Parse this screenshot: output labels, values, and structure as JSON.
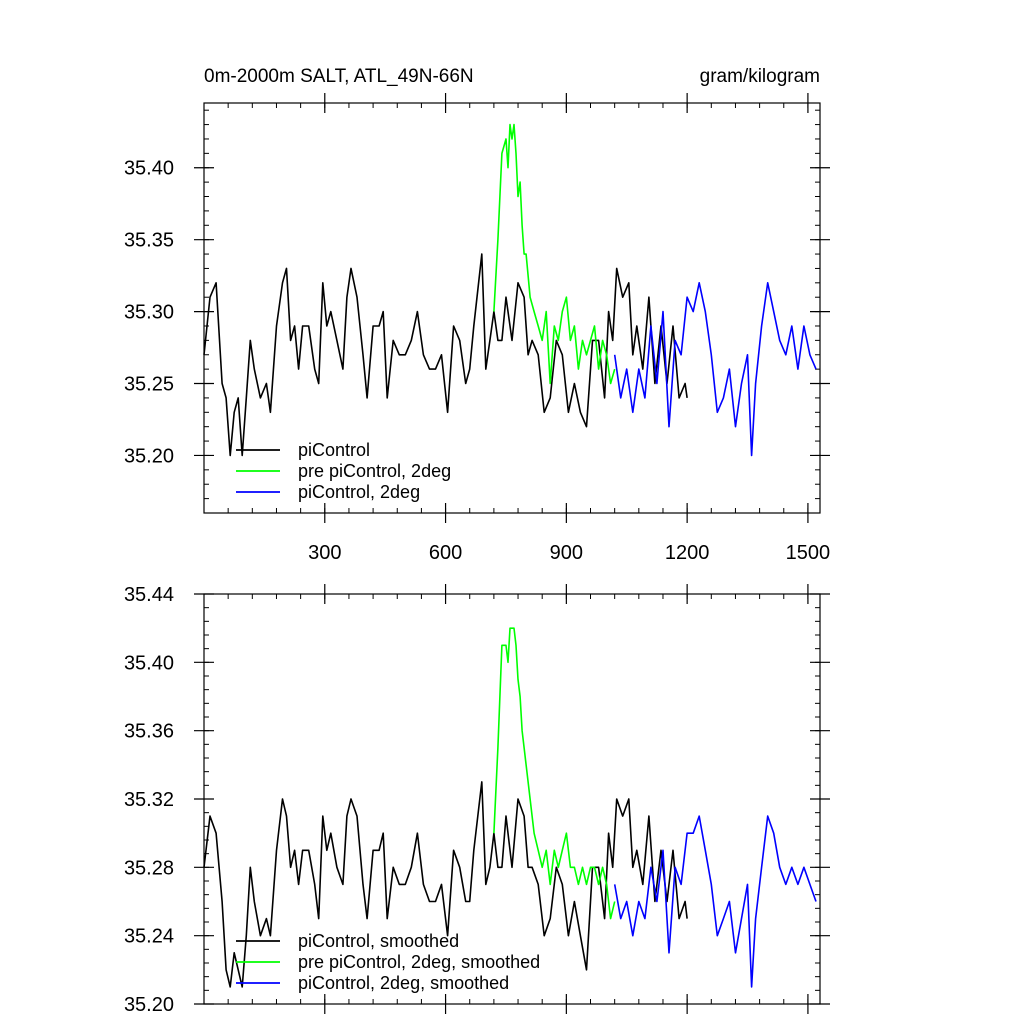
{
  "chart_data": [
    {
      "type": "line",
      "title_left": "0m-2000m SALT, ATL_49N-66N",
      "title_right": "gram/kilogram",
      "xlim": [
        0,
        1530
      ],
      "ylim": [
        35.16,
        35.445
      ],
      "x_ticks": [
        300,
        600,
        900,
        1200,
        1500
      ],
      "x_tick_labels": [
        "300",
        "600",
        "900",
        "1200",
        "1500"
      ],
      "y_ticks": [
        35.2,
        35.25,
        35.3,
        35.35,
        35.4
      ],
      "y_tick_labels": [
        "35.20",
        "35.25",
        "35.30",
        "35.35",
        "35.40"
      ],
      "legend": [
        "piControl",
        "pre piControl, 2deg",
        "piControl, 2deg"
      ],
      "series": [
        {
          "name": "piControl",
          "color": "#000000",
          "x": [
            0,
            15,
            30,
            45,
            55,
            65,
            75,
            85,
            95,
            105,
            115,
            125,
            140,
            155,
            165,
            180,
            195,
            205,
            215,
            225,
            235,
            245,
            260,
            275,
            285,
            295,
            305,
            315,
            330,
            345,
            355,
            365,
            380,
            395,
            405,
            420,
            435,
            445,
            455,
            470,
            485,
            500,
            515,
            530,
            545,
            560,
            575,
            590,
            605,
            620,
            635,
            650,
            660,
            670,
            690,
            700,
            710,
            720,
            730,
            740,
            750,
            765,
            780,
            795,
            805,
            815,
            830,
            845,
            860,
            875,
            890,
            905,
            920,
            935,
            950,
            965,
            980,
            995,
            1005,
            1015,
            1025,
            1040,
            1055,
            1065,
            1075,
            1090,
            1105,
            1120,
            1135,
            1150,
            1165,
            1180,
            1195,
            1200
          ],
          "y": [
            35.27,
            35.31,
            35.32,
            35.25,
            35.24,
            35.2,
            35.23,
            35.24,
            35.2,
            35.24,
            35.28,
            35.26,
            35.24,
            35.25,
            35.23,
            35.29,
            35.32,
            35.33,
            35.28,
            35.29,
            35.26,
            35.29,
            35.29,
            35.26,
            35.25,
            35.32,
            35.29,
            35.3,
            35.28,
            35.26,
            35.31,
            35.33,
            35.31,
            35.27,
            35.24,
            35.29,
            35.29,
            35.3,
            35.24,
            35.28,
            35.27,
            35.27,
            35.28,
            35.3,
            35.27,
            35.26,
            35.26,
            35.27,
            35.23,
            35.29,
            35.28,
            35.25,
            35.26,
            35.29,
            35.34,
            35.26,
            35.28,
            35.3,
            35.28,
            35.28,
            35.31,
            35.28,
            35.32,
            35.31,
            35.27,
            35.28,
            35.27,
            35.23,
            35.24,
            35.28,
            35.27,
            35.23,
            35.25,
            35.23,
            35.22,
            35.28,
            35.28,
            35.24,
            35.3,
            35.28,
            35.33,
            35.31,
            35.32,
            35.27,
            35.29,
            35.26,
            35.31,
            35.25,
            35.29,
            35.25,
            35.29,
            35.24,
            35.25,
            35.24
          ]
        },
        {
          "name": "pre piControl, 2deg",
          "color": "#00ff00",
          "x": [
            720,
            730,
            740,
            750,
            755,
            760,
            765,
            770,
            775,
            780,
            785,
            790,
            795,
            800,
            810,
            820,
            830,
            840,
            850,
            860,
            870,
            880,
            890,
            900,
            910,
            920,
            930,
            940,
            950,
            960,
            970,
            980,
            990,
            1000,
            1010,
            1020
          ],
          "y": [
            35.3,
            35.35,
            35.41,
            35.42,
            35.4,
            35.43,
            35.42,
            35.43,
            35.41,
            35.38,
            35.39,
            35.36,
            35.34,
            35.34,
            35.31,
            35.3,
            35.29,
            35.28,
            35.3,
            35.25,
            35.29,
            35.28,
            35.3,
            35.31,
            35.28,
            35.29,
            35.26,
            35.28,
            35.27,
            35.28,
            35.29,
            35.26,
            35.28,
            35.27,
            35.25,
            35.26
          ]
        },
        {
          "name": "piControl, 2deg",
          "color": "#0000ff",
          "x": [
            1020,
            1035,
            1050,
            1065,
            1080,
            1095,
            1110,
            1125,
            1140,
            1155,
            1170,
            1185,
            1200,
            1215,
            1230,
            1245,
            1260,
            1275,
            1290,
            1305,
            1320,
            1335,
            1350,
            1360,
            1370,
            1385,
            1400,
            1415,
            1430,
            1445,
            1460,
            1475,
            1490,
            1505,
            1520
          ],
          "y": [
            35.27,
            35.24,
            35.26,
            35.23,
            35.26,
            35.24,
            35.29,
            35.25,
            35.3,
            35.22,
            35.28,
            35.27,
            35.31,
            35.3,
            35.32,
            35.3,
            35.27,
            35.23,
            35.24,
            35.26,
            35.22,
            35.25,
            35.27,
            35.2,
            35.25,
            35.29,
            35.32,
            35.3,
            35.28,
            35.27,
            35.29,
            35.26,
            35.29,
            35.27,
            35.26
          ]
        }
      ]
    },
    {
      "type": "line",
      "xlim": [
        0,
        1530
      ],
      "ylim": [
        35.2,
        35.44
      ],
      "y_ticks": [
        35.2,
        35.24,
        35.28,
        35.32,
        35.36,
        35.4,
        35.44
      ],
      "y_tick_labels": [
        "35.20",
        "35.24",
        "35.28",
        "35.32",
        "35.36",
        "35.40",
        "35.44"
      ],
      "legend": [
        "piControl, smoothed",
        "pre piControl, 2deg, smoothed",
        "piControl, 2deg, smoothed"
      ],
      "series": [
        {
          "name": "piControl, smoothed",
          "color": "#000000",
          "x": [
            0,
            15,
            30,
            45,
            55,
            65,
            75,
            85,
            95,
            105,
            115,
            125,
            140,
            155,
            165,
            180,
            195,
            205,
            215,
            225,
            235,
            245,
            260,
            275,
            285,
            295,
            305,
            315,
            330,
            345,
            355,
            365,
            380,
            395,
            405,
            420,
            435,
            445,
            455,
            470,
            485,
            500,
            515,
            530,
            545,
            560,
            575,
            590,
            605,
            620,
            635,
            650,
            660,
            670,
            690,
            700,
            710,
            720,
            730,
            740,
            750,
            765,
            780,
            795,
            805,
            815,
            830,
            845,
            860,
            875,
            890,
            905,
            920,
            935,
            950,
            965,
            980,
            995,
            1005,
            1015,
            1025,
            1040,
            1055,
            1065,
            1075,
            1090,
            1105,
            1120,
            1135,
            1150,
            1165,
            1180,
            1195,
            1200
          ],
          "y": [
            35.28,
            35.31,
            35.3,
            35.26,
            35.22,
            35.21,
            35.23,
            35.22,
            35.21,
            35.24,
            35.28,
            35.26,
            35.24,
            35.25,
            35.24,
            35.29,
            35.32,
            35.31,
            35.28,
            35.29,
            35.27,
            35.29,
            35.29,
            35.27,
            35.25,
            35.31,
            35.29,
            35.3,
            35.28,
            35.27,
            35.31,
            35.32,
            35.31,
            35.27,
            35.25,
            35.29,
            35.29,
            35.3,
            35.25,
            35.28,
            35.27,
            35.27,
            35.28,
            35.3,
            35.27,
            35.26,
            35.26,
            35.27,
            35.24,
            35.29,
            35.28,
            35.26,
            35.26,
            35.29,
            35.33,
            35.27,
            35.28,
            35.3,
            35.28,
            35.28,
            35.31,
            35.28,
            35.32,
            35.31,
            35.28,
            35.28,
            35.27,
            35.24,
            35.25,
            35.28,
            35.27,
            35.24,
            35.26,
            35.24,
            35.22,
            35.28,
            35.28,
            35.25,
            35.3,
            35.28,
            35.32,
            35.31,
            35.32,
            35.28,
            35.29,
            35.27,
            35.31,
            35.26,
            35.29,
            35.26,
            35.29,
            35.25,
            35.26,
            35.25
          ]
        },
        {
          "name": "pre piControl, 2deg, smoothed",
          "color": "#00ff00",
          "x": [
            720,
            730,
            740,
            750,
            755,
            760,
            765,
            770,
            775,
            780,
            785,
            790,
            795,
            800,
            810,
            820,
            830,
            840,
            850,
            860,
            870,
            880,
            890,
            900,
            910,
            920,
            930,
            940,
            950,
            960,
            970,
            980,
            990,
            1000,
            1010,
            1020
          ],
          "y": [
            35.3,
            35.35,
            35.41,
            35.41,
            35.4,
            35.42,
            35.42,
            35.42,
            35.41,
            35.39,
            35.38,
            35.36,
            35.35,
            35.34,
            35.32,
            35.3,
            35.29,
            35.28,
            35.29,
            35.27,
            35.29,
            35.28,
            35.29,
            35.3,
            35.28,
            35.28,
            35.27,
            35.28,
            35.27,
            35.28,
            35.28,
            35.27,
            35.28,
            35.27,
            35.25,
            35.26
          ]
        },
        {
          "name": "piControl, 2deg, smoothed",
          "color": "#0000ff",
          "x": [
            1020,
            1035,
            1050,
            1065,
            1080,
            1095,
            1110,
            1125,
            1140,
            1155,
            1170,
            1185,
            1200,
            1215,
            1230,
            1245,
            1260,
            1275,
            1290,
            1305,
            1320,
            1335,
            1350,
            1360,
            1370,
            1385,
            1400,
            1415,
            1430,
            1445,
            1460,
            1475,
            1490,
            1505,
            1520
          ],
          "y": [
            35.27,
            35.25,
            35.26,
            35.24,
            35.26,
            35.25,
            35.28,
            35.26,
            35.29,
            35.23,
            35.28,
            35.27,
            35.3,
            35.3,
            35.31,
            35.29,
            35.27,
            35.24,
            35.25,
            35.26,
            35.23,
            35.25,
            35.27,
            35.21,
            35.25,
            35.28,
            35.31,
            35.3,
            35.28,
            35.27,
            35.28,
            35.27,
            35.28,
            35.27,
            35.26
          ]
        }
      ]
    }
  ]
}
